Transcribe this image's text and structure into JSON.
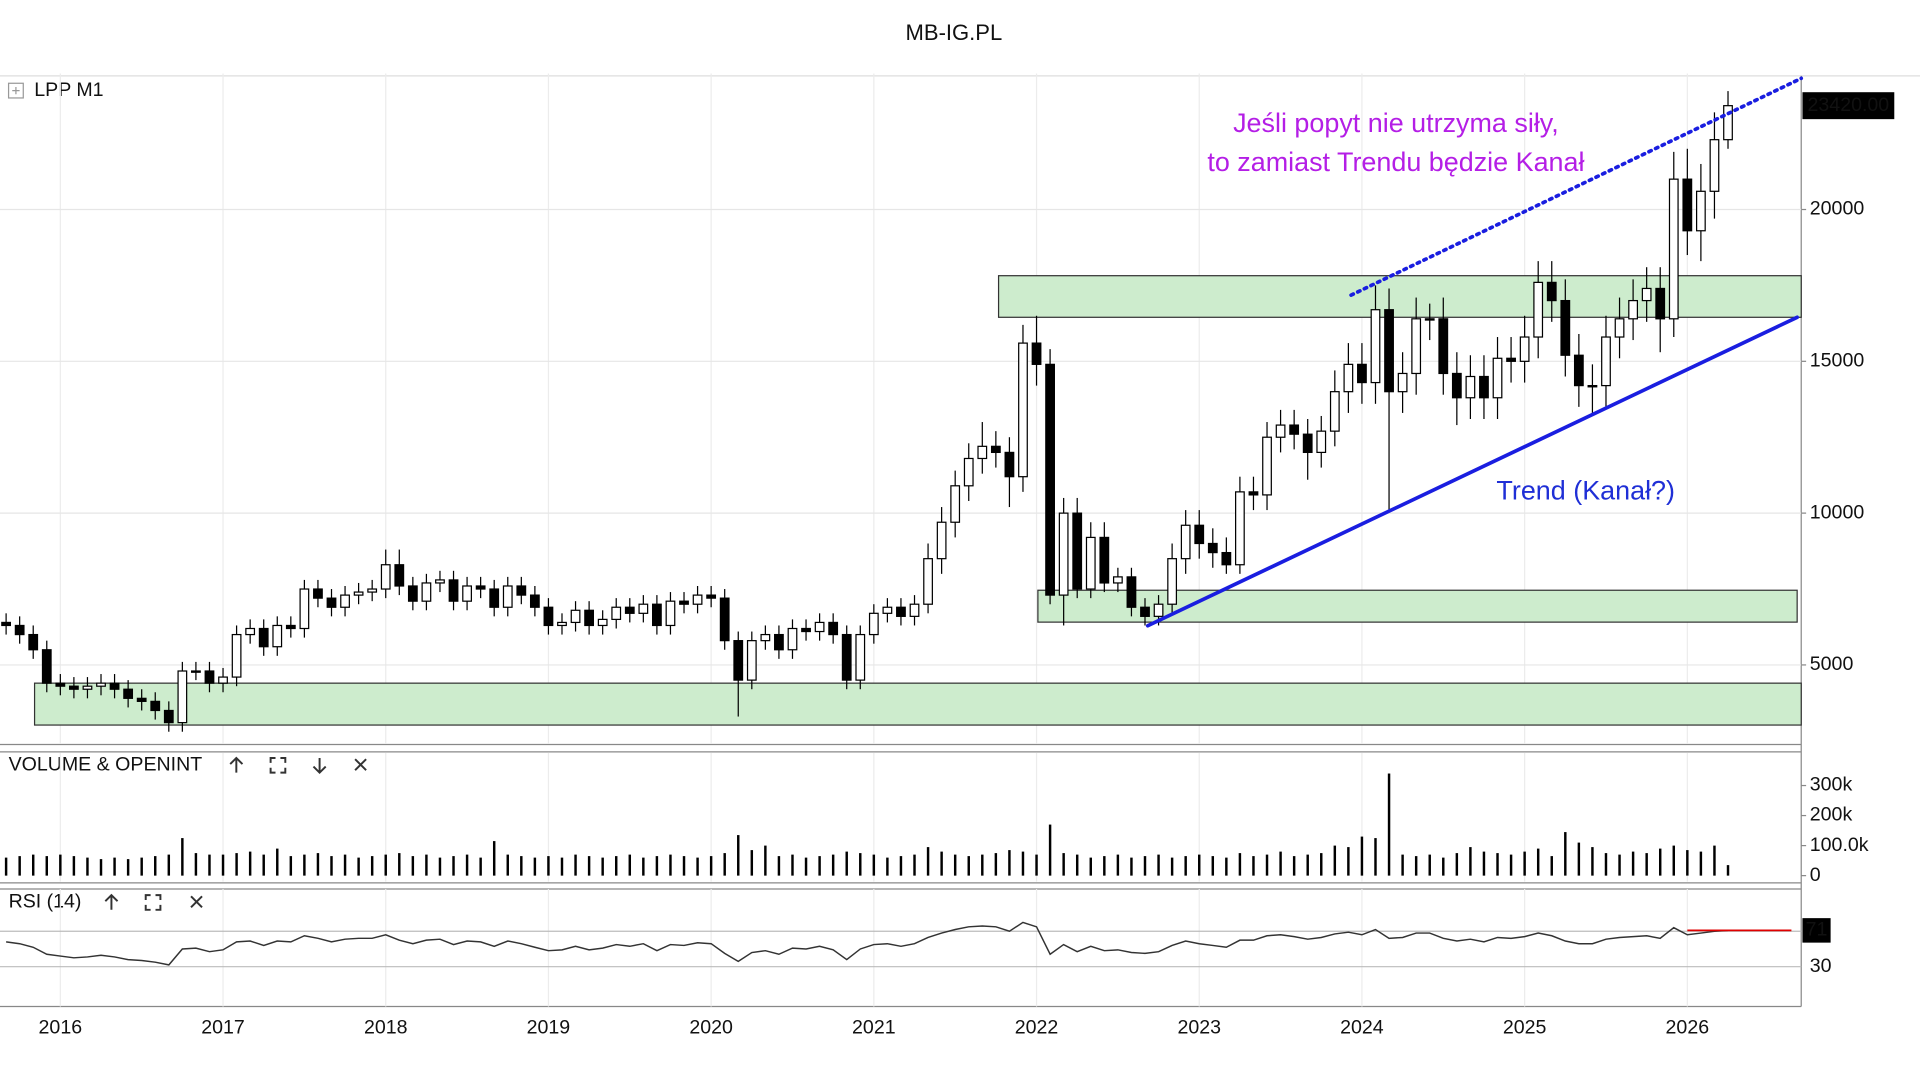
{
  "header": {
    "title": "MB-IG.PL"
  },
  "chart_data": [
    {
      "type": "candlestick",
      "title": "LPP M1",
      "open": [
        6400,
        6300,
        6000,
        5500,
        4400,
        4300,
        4200,
        4300,
        4400,
        4200,
        3900,
        3800,
        3500,
        3100,
        4800,
        4800,
        4400,
        4600,
        6000,
        6200,
        5600,
        6300,
        6200,
        7500,
        7200,
        6900,
        7300,
        7400,
        7500,
        8300,
        7600,
        7100,
        7700,
        7800,
        7100,
        7600,
        7500,
        6900,
        7600,
        7300,
        6900,
        6300,
        6400,
        6800,
        6300,
        6500,
        6900,
        6700,
        7000,
        6300,
        7100,
        7000,
        7300,
        7200,
        5800,
        4500,
        5800,
        6000,
        5500,
        6200,
        6100,
        6400,
        6000,
        4500,
        6000,
        6700,
        6900,
        6600,
        7000,
        8500,
        9700,
        10900,
        11800,
        12200,
        12000,
        11200,
        15600,
        14900,
        7300,
        10000,
        7500,
        9200,
        7700,
        7900,
        6900,
        6600,
        7000,
        8500,
        9600,
        9000,
        8700,
        8300,
        10700,
        10600,
        12500,
        12900,
        12600,
        12000,
        12700,
        14000,
        14900,
        14300,
        16700,
        14000,
        14600,
        16400,
        16400,
        14600,
        13800,
        14500,
        13800,
        15100,
        15000,
        15800,
        17600,
        17000,
        15200,
        14200,
        14200,
        15800,
        16400,
        17000,
        17400,
        16400,
        21000,
        19300,
        20600,
        22300
      ],
      "high": [
        6700,
        6600,
        6300,
        5800,
        4700,
        4600,
        4600,
        4700,
        4700,
        4500,
        4200,
        4100,
        3800,
        5100,
        5100,
        5100,
        4900,
        6300,
        6500,
        6500,
        6600,
        6600,
        7800,
        7800,
        7500,
        7600,
        7700,
        7800,
        8800,
        8800,
        7900,
        8000,
        8100,
        8100,
        7900,
        7900,
        7800,
        7900,
        7900,
        7600,
        7200,
        6700,
        7100,
        7100,
        6800,
        7200,
        7200,
        7300,
        7300,
        7400,
        7400,
        7600,
        7600,
        7500,
        6100,
        6100,
        6300,
        6300,
        6500,
        6500,
        6700,
        6700,
        6300,
        6300,
        7000,
        7200,
        7200,
        7300,
        9000,
        10200,
        11400,
        12300,
        13000,
        12700,
        12500,
        16200,
        16500,
        15400,
        10500,
        10500,
        9700,
        9700,
        8200,
        8200,
        7200,
        7300,
        9000,
        10100,
        10100,
        9500,
        9200,
        11200,
        11200,
        13000,
        13400,
        13400,
        13100,
        13200,
        14700,
        15600,
        15600,
        17500,
        17400,
        15300,
        17100,
        16900,
        17100,
        15300,
        15200,
        15200,
        15800,
        15800,
        16500,
        18300,
        18300,
        17700,
        15900,
        14900,
        16500,
        17100,
        17700,
        18100,
        18100,
        21900,
        22000,
        21500,
        23200,
        23900
      ],
      "low": [
        6000,
        5700,
        5200,
        4100,
        4000,
        3900,
        3900,
        4000,
        3900,
        3600,
        3500,
        3200,
        2800,
        2800,
        4500,
        4100,
        4100,
        4300,
        5700,
        5300,
        5300,
        5900,
        5900,
        6900,
        6600,
        6600,
        7000,
        7100,
        7200,
        7300,
        6800,
        6800,
        7400,
        6800,
        6800,
        7200,
        6600,
        6600,
        7000,
        6600,
        6000,
        6000,
        6100,
        6000,
        6000,
        6200,
        6400,
        6400,
        6000,
        6000,
        6700,
        6700,
        6900,
        5500,
        3300,
        4200,
        5500,
        5200,
        5200,
        5800,
        5800,
        5700,
        4200,
        4200,
        5700,
        6400,
        6300,
        6300,
        6700,
        8000,
        9200,
        10400,
        11300,
        11500,
        10200,
        10700,
        14200,
        7000,
        6300,
        7200,
        7200,
        7400,
        7400,
        6600,
        6300,
        6300,
        6700,
        8000,
        8500,
        8200,
        8000,
        8000,
        10100,
        10100,
        12000,
        12100,
        11100,
        11500,
        12200,
        13300,
        13600,
        13600,
        10100,
        13300,
        13900,
        15700,
        13900,
        12900,
        13100,
        13100,
        13100,
        14300,
        14300,
        15100,
        16300,
        14500,
        13500,
        13300,
        13500,
        15100,
        15700,
        16300,
        15300,
        15800,
        18500,
        18300,
        19700,
        22000
      ],
      "close": [
        6300,
        6000,
        5500,
        4400,
        4300,
        4200,
        4300,
        4400,
        4200,
        3900,
        3800,
        3500,
        3100,
        4800,
        4800,
        4400,
        4600,
        6000,
        6200,
        5600,
        6300,
        6200,
        7500,
        7200,
        6900,
        7300,
        7400,
        7500,
        8300,
        7600,
        7100,
        7700,
        7800,
        7100,
        7600,
        7500,
        6900,
        7600,
        7300,
        6900,
        6300,
        6400,
        6800,
        6300,
        6500,
        6900,
        6700,
        7000,
        6300,
        7100,
        7000,
        7300,
        7200,
        5800,
        4500,
        5800,
        6000,
        5500,
        6200,
        6100,
        6400,
        6000,
        4500,
        6000,
        6700,
        6900,
        6600,
        7000,
        8500,
        9700,
        10900,
        11800,
        12200,
        12000,
        11200,
        15600,
        14900,
        7300,
        10000,
        7500,
        9200,
        7700,
        7900,
        6900,
        6600,
        7000,
        8500,
        9600,
        9000,
        8700,
        8300,
        10700,
        10600,
        12500,
        12900,
        12600,
        12000,
        12700,
        14000,
        14900,
        14300,
        16700,
        14000,
        14600,
        16400,
        16400,
        14600,
        13800,
        14500,
        13800,
        15100,
        15000,
        15800,
        17600,
        17000,
        15200,
        14200,
        14200,
        15800,
        16400,
        17000,
        17400,
        16400,
        21000,
        19300,
        20600,
        22300,
        23420
      ],
      "color_up": "#ffffff",
      "color_down": "#000000",
      "xlim": [
        -0.45,
        132.4
      ],
      "xticks": [
        {
          "value": 4,
          "label": "2016"
        },
        {
          "value": 16,
          "label": "2017"
        },
        {
          "value": 28,
          "label": "2018"
        },
        {
          "value": 40,
          "label": "2019"
        },
        {
          "value": 52,
          "label": "2020"
        },
        {
          "value": 64,
          "label": "2021"
        },
        {
          "value": 76,
          "label": "2022"
        },
        {
          "value": 88,
          "label": "2023"
        },
        {
          "value": 100,
          "label": "2024"
        },
        {
          "value": 112,
          "label": "2025"
        },
        {
          "value": 124,
          "label": "2026"
        }
      ],
      "ylim": [
        2420,
        24400
      ],
      "yticks": [
        5000,
        10000,
        15000,
        20000
      ],
      "grid": true,
      "last_value_label": "23420.00",
      "zones": [
        {
          "x": [
            2.1,
            132.4
          ],
          "y": [
            3020,
            4400
          ],
          "color": "#cdeccd"
        },
        {
          "x": [
            76.1,
            132.1
          ],
          "y": [
            6410,
            7460
          ],
          "color": "#cdeccd"
        },
        {
          "x": [
            73.2,
            132.4
          ],
          "y": [
            16450,
            17820
          ],
          "color": "#cdeccd"
        }
      ],
      "lines": [
        {
          "x": [
            84.2,
            132.1
          ],
          "y": [
            6290,
            16450
          ],
          "color": "#1a1ee0",
          "style": "solid"
        },
        {
          "x": [
            99.2,
            132.4
          ],
          "y": [
            17180,
            24320
          ],
          "color": "#1a1ee0",
          "style": "dotted"
        }
      ],
      "annotations": [
        {
          "lines": [
            "Jeśli popyt nie utrzyma siły,",
            "to zamiast Trendu będzie Kanał"
          ],
          "color": "#b41ee6"
        },
        {
          "lines": [
            "Trend (Kanał?)"
          ],
          "color": "#1f2fd6"
        }
      ]
    },
    {
      "type": "bar",
      "title": "VOLUME & OPENINT",
      "values": [
        60000,
        65000,
        70000,
        65000,
        70000,
        65000,
        60000,
        55000,
        60000,
        55000,
        60000,
        65000,
        70000,
        125000,
        75000,
        70000,
        70000,
        75000,
        80000,
        70000,
        90000,
        65000,
        70000,
        75000,
        65000,
        70000,
        60000,
        65000,
        70000,
        75000,
        65000,
        70000,
        60000,
        65000,
        70000,
        60000,
        115000,
        70000,
        65000,
        60000,
        65000,
        60000,
        70000,
        65000,
        60000,
        65000,
        70000,
        60000,
        65000,
        70000,
        65000,
        60000,
        65000,
        75000,
        135000,
        85000,
        100000,
        65000,
        70000,
        60000,
        65000,
        70000,
        80000,
        75000,
        70000,
        60000,
        65000,
        70000,
        95000,
        80000,
        70000,
        65000,
        70000,
        75000,
        85000,
        80000,
        70000,
        170000,
        75000,
        70000,
        60000,
        65000,
        70000,
        60000,
        65000,
        70000,
        60000,
        65000,
        70000,
        65000,
        60000,
        75000,
        65000,
        70000,
        80000,
        65000,
        70000,
        75000,
        100000,
        95000,
        130000,
        125000,
        340000,
        70000,
        65000,
        70000,
        60000,
        75000,
        95000,
        80000,
        75000,
        70000,
        80000,
        90000,
        65000,
        145000,
        110000,
        95000,
        75000,
        70000,
        80000,
        75000,
        90000,
        100000,
        85000,
        80000,
        100000,
        35000
      ],
      "color": "#000000",
      "xlim": [
        -0.45,
        132.4
      ],
      "ylim": [
        -20000,
        400000
      ],
      "yticks": [
        0,
        {
          "value": 100000,
          "label": "100.0k"
        },
        {
          "value": 200000,
          "label": "200k"
        },
        {
          "value": 300000,
          "label": "300k"
        }
      ]
    },
    {
      "type": "line",
      "title": "RSI (14)",
      "values": [
        58,
        56,
        52,
        44,
        42,
        40,
        41,
        43,
        41,
        38,
        37,
        35,
        32,
        50,
        51,
        47,
        49,
        58,
        59,
        54,
        59,
        58,
        65,
        62,
        58,
        61,
        62,
        62,
        66,
        60,
        56,
        60,
        61,
        55,
        59,
        58,
        53,
        59,
        56,
        52,
        48,
        49,
        53,
        49,
        51,
        55,
        53,
        56,
        48,
        55,
        54,
        57,
        56,
        45,
        36,
        46,
        48,
        44,
        51,
        50,
        53,
        49,
        38,
        50,
        55,
        56,
        53,
        56,
        63,
        68,
        72,
        75,
        76,
        75,
        70,
        80,
        75,
        44,
        55,
        47,
        53,
        48,
        49,
        46,
        45,
        47,
        54,
        59,
        56,
        54,
        52,
        60,
        60,
        65,
        66,
        64,
        61,
        63,
        67,
        69,
        66,
        72,
        62,
        63,
        68,
        68,
        62,
        59,
        61,
        58,
        63,
        62,
        64,
        68,
        65,
        59,
        56,
        56,
        61,
        63,
        64,
        65,
        62,
        74,
        66,
        68,
        70,
        71
      ],
      "color": "#333333",
      "xlim": [
        -0.45,
        132.4
      ],
      "ylim": [
        -15,
        115
      ],
      "yticks": [
        30
      ],
      "overbought_level": 70,
      "marker_color": "#e00000"
    }
  ]
}
